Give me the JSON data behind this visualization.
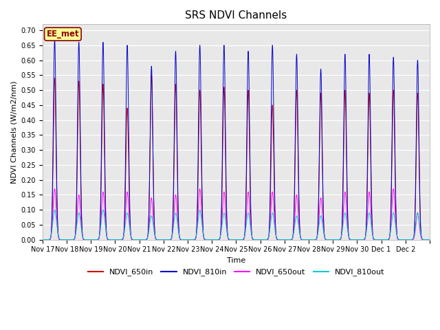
{
  "title": "SRS NDVI Channels",
  "ylabel": "NDVI Channels (W/m2/nm)",
  "xlabel": "Time",
  "ylim": [
    0.0,
    0.72
  ],
  "yticks": [
    0.0,
    0.05,
    0.1,
    0.15,
    0.2,
    0.25,
    0.3,
    0.35,
    0.4,
    0.45,
    0.5,
    0.55,
    0.6,
    0.65,
    0.7
  ],
  "colors": {
    "NDVI_650in": "#cc0000",
    "NDVI_810in": "#0000cc",
    "NDVI_650out": "#ff00ff",
    "NDVI_810out": "#00cccc"
  },
  "legend_labels": [
    "NDVI_650in",
    "NDVI_810in",
    "NDVI_650out",
    "NDVI_810out"
  ],
  "annotation_text": "EE_met",
  "annotation_bg": "#ffff99",
  "annotation_border": "#8b0000",
  "plot_bg": "#e8e8e8",
  "num_days": 16,
  "peaks_810in": [
    0.67,
    0.66,
    0.66,
    0.65,
    0.58,
    0.63,
    0.65,
    0.65,
    0.63,
    0.65,
    0.62,
    0.57,
    0.62,
    0.62,
    0.61,
    0.6
  ],
  "peaks_650in": [
    0.54,
    0.53,
    0.52,
    0.44,
    0.55,
    0.52,
    0.5,
    0.51,
    0.5,
    0.45,
    0.5,
    0.49,
    0.5,
    0.49,
    0.5,
    0.49
  ],
  "peaks_650out": [
    0.17,
    0.15,
    0.16,
    0.16,
    0.14,
    0.15,
    0.17,
    0.16,
    0.16,
    0.16,
    0.15,
    0.14,
    0.16,
    0.16,
    0.17,
    0.09
  ],
  "peaks_810out": [
    0.1,
    0.09,
    0.1,
    0.09,
    0.08,
    0.09,
    0.1,
    0.09,
    0.09,
    0.09,
    0.08,
    0.08,
    0.09,
    0.09,
    0.09,
    0.09
  ],
  "xtick_labels": [
    "Nov 17",
    "Nov 18",
    "Nov 19",
    "Nov 20",
    "Nov 21",
    "Nov 22",
    "Nov 23",
    "Nov 24",
    "Nov 25",
    "Nov 26",
    "Nov 27",
    "Nov 28",
    "Nov 29",
    "Nov 30",
    "Dec 1",
    "Dec 2"
  ],
  "title_fontsize": 11,
  "label_fontsize": 8,
  "tick_fontsize": 7
}
